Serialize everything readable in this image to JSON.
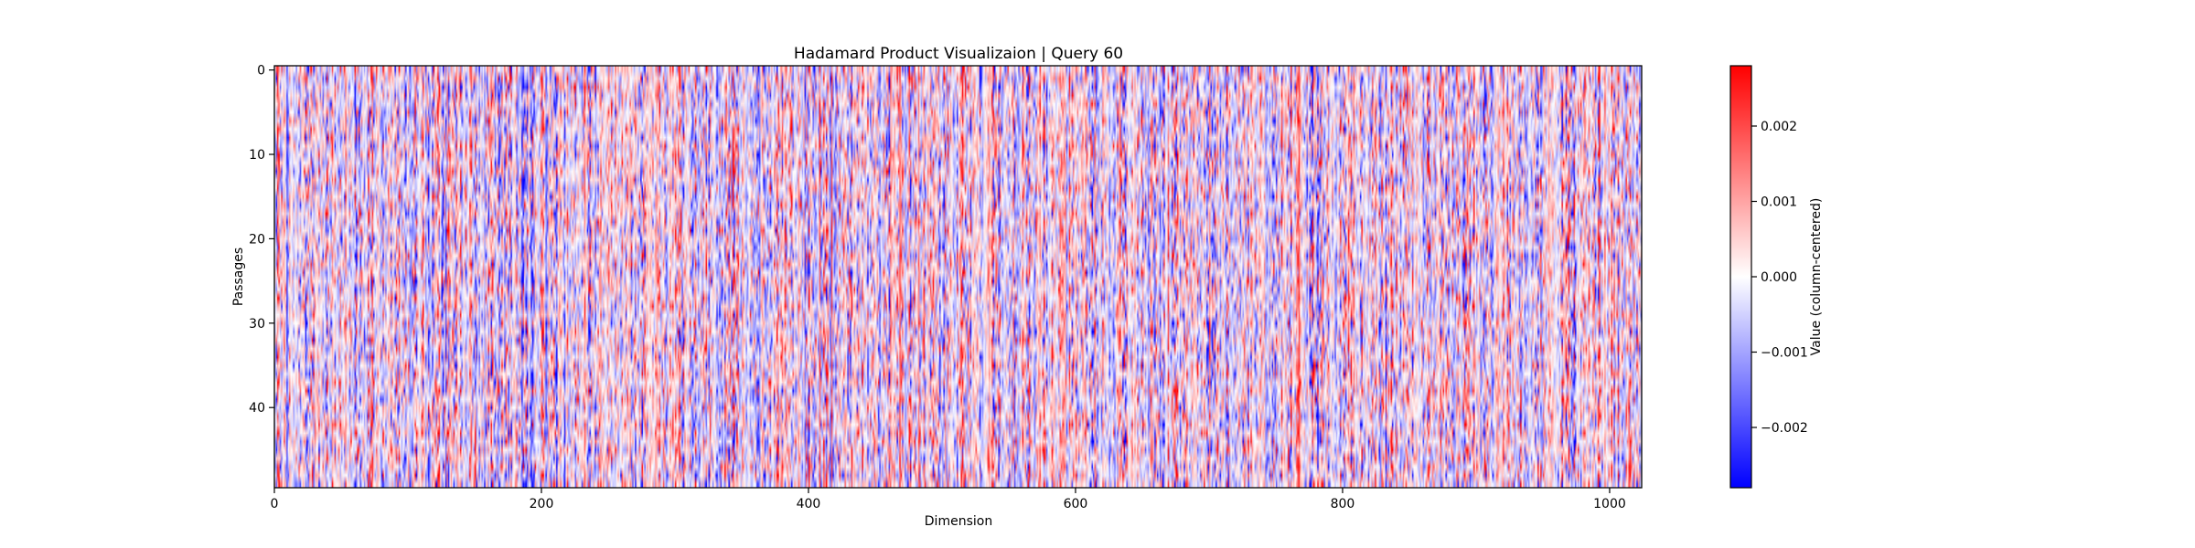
{
  "chart_data": {
    "type": "heatmap",
    "title": "Hadamard Product Visualizaion | Query 60",
    "xlabel": "Dimension",
    "ylabel": "Passages",
    "x_range": [
      0,
      1024
    ],
    "y_range": [
      0,
      50
    ],
    "x_ticks": [
      0,
      200,
      400,
      600,
      800,
      1000
    ],
    "x_tick_labels": [
      "0",
      "200",
      "400",
      "600",
      "800",
      "1000"
    ],
    "y_ticks": [
      0,
      10,
      20,
      30,
      40
    ],
    "y_tick_labels": [
      "0",
      "10",
      "20",
      "30",
      "40"
    ],
    "y_inverted": true,
    "colormap": "bwr",
    "colors": {
      "low": "#0000ff",
      "mid": "#ffffff",
      "high": "#ff0000"
    },
    "colorbar": {
      "label": "Value (column-centered)",
      "vmin": -0.0028,
      "vmax": 0.0028,
      "ticks": [
        0.002,
        0.001,
        0.0,
        -0.001,
        -0.002
      ],
      "tick_labels": [
        "0.002",
        "0.001",
        "0.000",
        "−0.001",
        "−0.002"
      ]
    },
    "grid": false
  }
}
